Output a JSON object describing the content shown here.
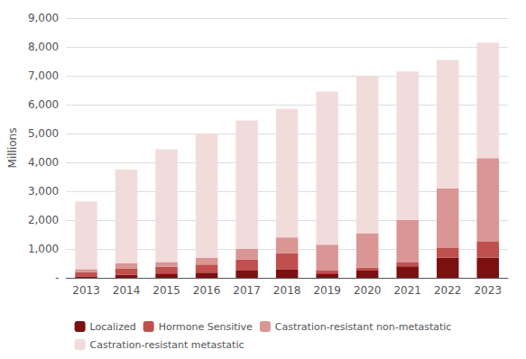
{
  "chart_data": {
    "type": "bar",
    "stacked": true,
    "categories": [
      "2013",
      "2014",
      "2015",
      "2016",
      "2017",
      "2018",
      "2019",
      "2020",
      "2021",
      "2022",
      "2023"
    ],
    "series": [
      {
        "name": "Localized",
        "color": "#7B1010",
        "values": [
          50,
          100,
          150,
          180,
          250,
          300,
          150,
          250,
          400,
          700,
          700
        ]
      },
      {
        "name": "Hormone Sensitive",
        "color": "#C0504D",
        "values": [
          150,
          230,
          230,
          280,
          380,
          550,
          100,
          100,
          150,
          350,
          550
        ]
      },
      {
        "name": "Castration-resistant non-metastatic",
        "color": "#D99694",
        "values": [
          100,
          170,
          170,
          240,
          370,
          550,
          900,
          1200,
          1450,
          2050,
          2900
        ]
      },
      {
        "name": "Castration-resistant metastatic",
        "color": "#F2DCDB",
        "values": [
          2350,
          3250,
          3900,
          4300,
          4450,
          4450,
          5300,
          5450,
          5150,
          4450,
          4000
        ]
      }
    ],
    "ylabel": "Millions",
    "ylim": [
      0,
      9000
    ],
    "yticks": [
      {
        "value": 0,
        "label": "-"
      },
      {
        "value": 1000,
        "label": "1,000"
      },
      {
        "value": 2000,
        "label": "2,000"
      },
      {
        "value": 3000,
        "label": "3,000"
      },
      {
        "value": 4000,
        "label": "4,000"
      },
      {
        "value": 5000,
        "label": "5,000"
      },
      {
        "value": 6000,
        "label": "6,000"
      },
      {
        "value": 7000,
        "label": "7,000"
      },
      {
        "value": 8000,
        "label": "8,000"
      },
      {
        "value": 9000,
        "label": "9,000"
      }
    ],
    "grid": true,
    "legend": "bottom"
  }
}
